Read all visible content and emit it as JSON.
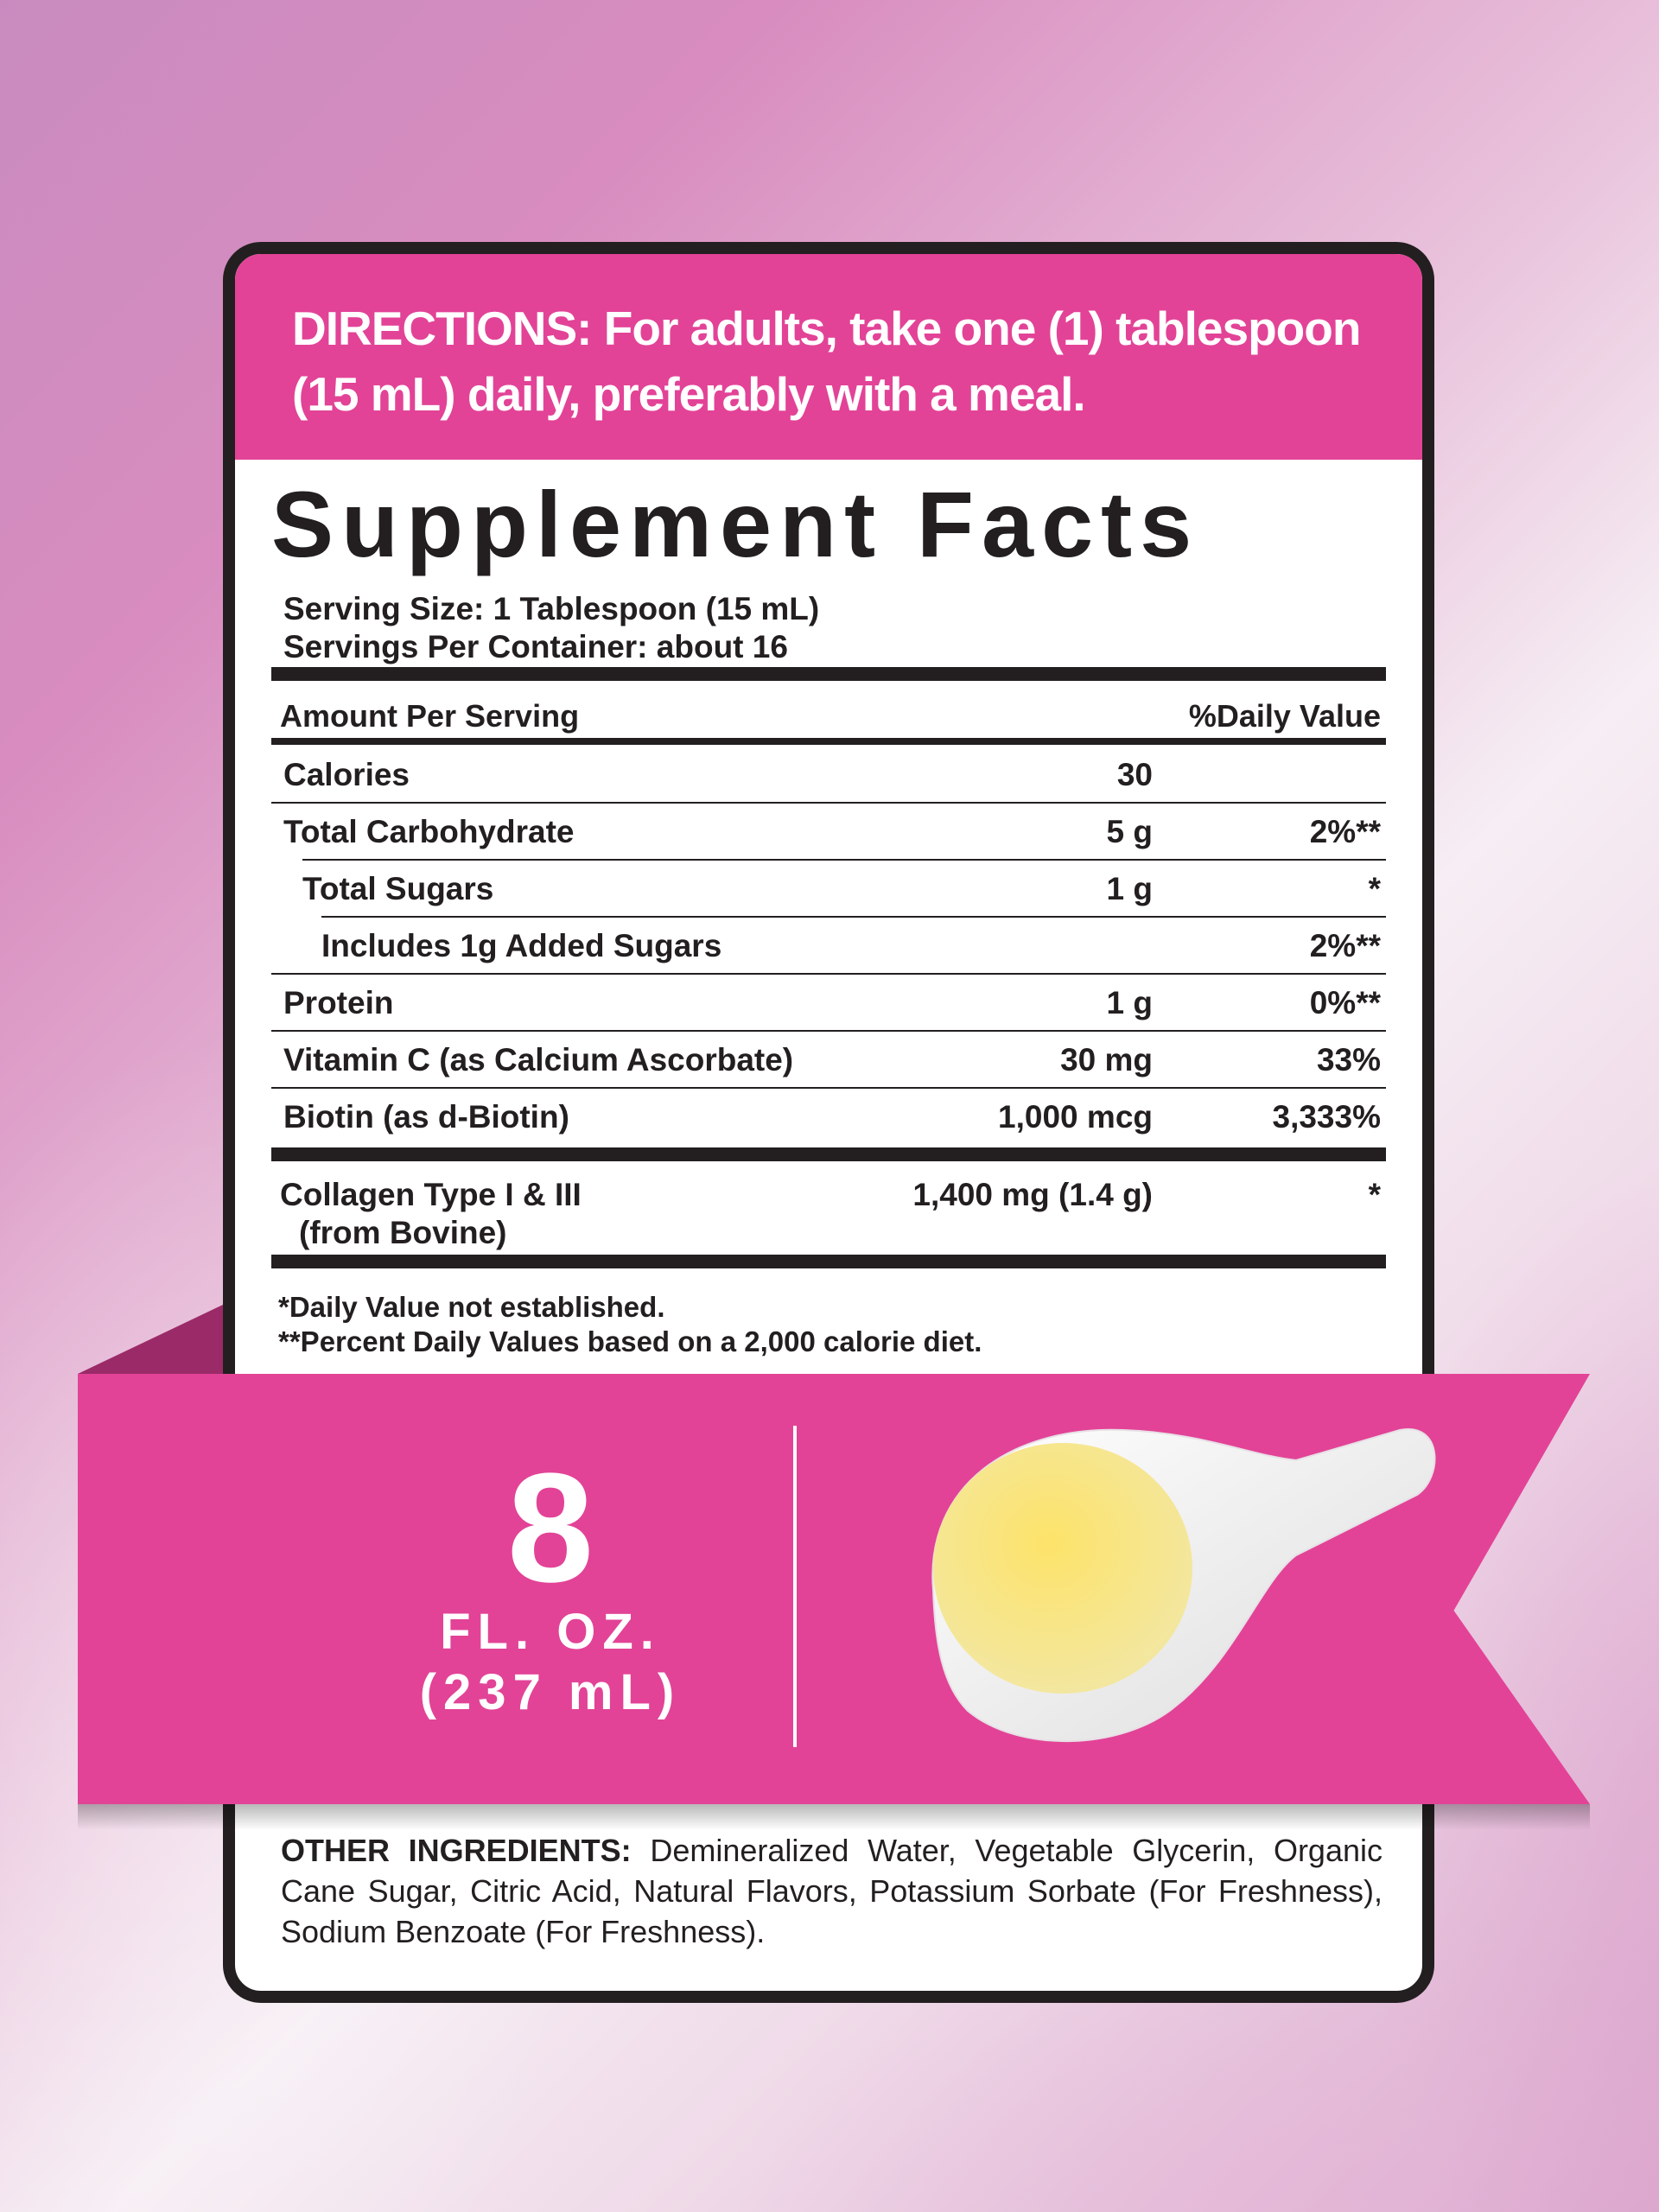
{
  "colors": {
    "accent": "#e24397",
    "text": "#231f20",
    "fold": "#9b2a68"
  },
  "directions": {
    "line1": "DIRECTIONS: For adults, take one (1) tablespoon",
    "line2": "(15 mL) daily, preferably with a meal."
  },
  "facts": {
    "title": "Supplement Facts",
    "serving_size": "Serving Size: 1 Tablespoon (15 mL)",
    "servings_per_container": "Servings Per Container: about 16",
    "header_amount": "Amount Per Serving",
    "header_dv": "%Daily Value",
    "rows": [
      {
        "name": "Calories",
        "amount": "30",
        "dv": ""
      },
      {
        "name": "Total Carbohydrate",
        "amount": "5 g",
        "dv": "2%**"
      },
      {
        "name": "Total Sugars",
        "amount": "1 g",
        "dv": "*"
      },
      {
        "name": "Includes 1g Added Sugars",
        "amount": "",
        "dv": "2%**"
      },
      {
        "name": "Protein",
        "amount": "1 g",
        "dv": "0%**"
      },
      {
        "name": "Vitamin C (as Calcium Ascorbate)",
        "amount": "30 mg",
        "dv": "33%"
      },
      {
        "name": "Biotin (as d-Biotin)",
        "amount": "1,000 mcg",
        "dv": "3,333%"
      }
    ],
    "collagen": {
      "name": "Collagen Type I & III",
      "source": "(from Bovine)",
      "amount": "1,400 mg (1.4 g)",
      "dv": "*"
    },
    "footnote1": "*Daily Value not established.",
    "footnote2": "**Percent Daily Values based on a 2,000 calorie diet."
  },
  "volume": {
    "number": "8",
    "unit": "FL. OZ.",
    "metric": "(237 mL)"
  },
  "other_ingredients": {
    "label": "OTHER INGREDIENTS:",
    "text": " Demineralized Water, Vegetable Glycerin, Organic Cane Sugar, Citric Acid, Natural Flavors, Potassium Sorbate (For Freshness), Sodium Benzoate (For Freshness)."
  }
}
